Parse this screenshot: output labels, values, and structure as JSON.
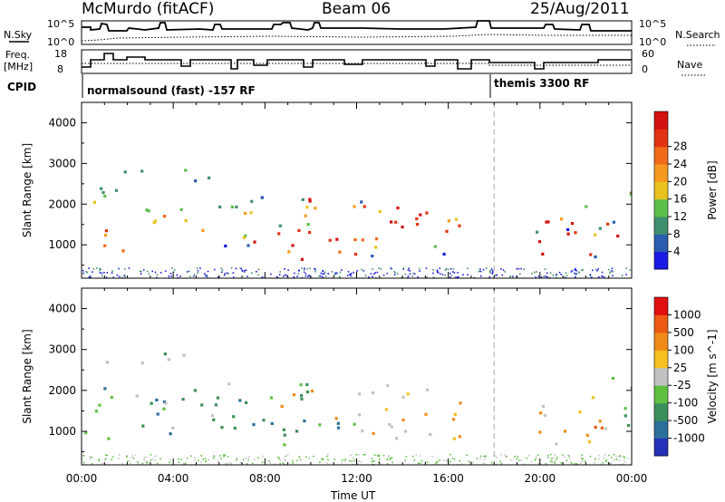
{
  "header": {
    "station": "McMurdo (fitACF)",
    "beam": "Beam 06",
    "date": "25/Aug/2011"
  },
  "status_panel": {
    "nsky_label": "N.Sky",
    "nsearch_label": "N.Search",
    "nsky_ticks": [
      "10^5",
      "10^0"
    ],
    "nsearch_ticks": [
      "10^5",
      "10^0"
    ],
    "freq_label_line1": "Freq.",
    "freq_label_line2": "[MHz]",
    "freq_ticks": [
      "18",
      "8"
    ],
    "nave_label": "Nave",
    "nave_ticks": [
      "60",
      "0"
    ],
    "cpid_label": "CPID",
    "cpid_program_1": "normalsound (fast) -157 RF",
    "cpid_program_2": "themis 3300 RF"
  },
  "chart_data": [
    {
      "type": "heatmap",
      "panel": "power",
      "title": "",
      "xlabel": "Time UT",
      "ylabel": "Slant Range [km]",
      "ylim": [
        180,
        4500
      ],
      "xlim": [
        "00:00",
        "24:00"
      ],
      "x_ticks": [
        "00:00",
        "04:00",
        "08:00",
        "12:00",
        "16:00",
        "20:00",
        "00:00"
      ],
      "y_ticks": [
        1000,
        2000,
        3000,
        4000
      ],
      "colorbar": {
        "label": "Power [dB]",
        "ticks": [
          "4",
          "8",
          "12",
          "16",
          "20",
          "24",
          "28"
        ],
        "colors": [
          "#1a1ae6",
          "#2a5db0",
          "#3f8f6e",
          "#5bbf4a",
          "#e8c21e",
          "#f59a1e",
          "#f06a1a",
          "#e23214",
          "#d41010"
        ]
      },
      "regions": [
        {
          "t0": 0.1,
          "t1": 1.4,
          "r0": 800,
          "r1": 1500,
          "core": 0.75
        },
        {
          "t0": 0.2,
          "t1": 1.8,
          "r0": 1500,
          "r1": 2500,
          "core": 0.1
        },
        {
          "t0": 1.5,
          "t1": 2.3,
          "r0": 700,
          "r1": 1200,
          "core": 0.5
        },
        {
          "t0": 1.0,
          "t1": 2.8,
          "r0": 2600,
          "r1": 2900,
          "core": 0.1
        },
        {
          "t0": 2.6,
          "t1": 4.6,
          "r0": 1200,
          "r1": 2200,
          "core": 0.08
        },
        {
          "t0": 3.3,
          "t1": 5.6,
          "r0": 2600,
          "r1": 3000,
          "core": 0.05
        },
        {
          "t0": 5.2,
          "t1": 8.5,
          "r0": 1000,
          "r1": 2200,
          "core": 0.2
        },
        {
          "t0": 6.8,
          "t1": 7.5,
          "r0": 800,
          "r1": 1400,
          "core": 0.4
        },
        {
          "t0": 8.0,
          "t1": 12.0,
          "r0": 600,
          "r1": 1400,
          "core": 0.75
        },
        {
          "t0": 8.5,
          "t1": 12.0,
          "r0": 1400,
          "r1": 2200,
          "core": 0.2
        },
        {
          "t0": 12.0,
          "t1": 15.3,
          "r0": 700,
          "r1": 2100,
          "core": 0.6
        },
        {
          "t0": 15.3,
          "t1": 16.7,
          "r0": 800,
          "r1": 2000,
          "core": 0.35
        },
        {
          "t0": 19.6,
          "t1": 23.4,
          "r0": 700,
          "r1": 1400,
          "core": 0.8
        },
        {
          "t0": 20.0,
          "t1": 22.8,
          "r0": 1400,
          "r1": 2100,
          "core": 0.3
        },
        {
          "t0": 22.8,
          "t1": 24.0,
          "r0": 1500,
          "r1": 2500,
          "core": 0.35
        }
      ]
    },
    {
      "type": "heatmap",
      "panel": "velocity",
      "title": "",
      "xlabel": "Time UT",
      "ylabel": "Slant Range [km]",
      "ylim": [
        180,
        4500
      ],
      "xlim": [
        "00:00",
        "24:00"
      ],
      "x_ticks": [
        "00:00",
        "04:00",
        "08:00",
        "12:00",
        "16:00",
        "20:00",
        "00:00"
      ],
      "y_ticks": [
        1000,
        2000,
        3000,
        4000
      ],
      "colorbar": {
        "label": "Velocity [m s^-1]",
        "ticks": [
          "1000",
          "500",
          "100",
          "25",
          "-25",
          "-100",
          "-500",
          "-1000"
        ],
        "colors": [
          "#2530b8",
          "#2b6f9a",
          "#3c8f5a",
          "#5fc040",
          "#c2c2c2",
          "#f5c020",
          "#f08a18",
          "#ee5a16",
          "#e01010"
        ]
      },
      "regions": [
        {
          "t0": 0.1,
          "t1": 1.4,
          "r0": 800,
          "r1": 2300,
          "mix": [
            "#3c8f5a",
            "#2b6f9a",
            "#5fc040"
          ]
        },
        {
          "t0": 1.4,
          "t1": 4.2,
          "r0": 900,
          "r1": 2000,
          "mix": [
            "#3c8f5a",
            "#2b6f9a",
            "#5fc040",
            "#c2c2c2"
          ]
        },
        {
          "t0": 1.0,
          "t1": 4.6,
          "r0": 2600,
          "r1": 3000,
          "mix": [
            "#c2c2c2",
            "#3c8f5a"
          ]
        },
        {
          "t0": 4.2,
          "t1": 6.6,
          "r0": 1000,
          "r1": 2200,
          "mix": [
            "#f08a18",
            "#3c8f5a",
            "#c2c2c2"
          ]
        },
        {
          "t0": 6.6,
          "t1": 8.4,
          "r0": 900,
          "r1": 2100,
          "mix": [
            "#3c8f5a",
            "#2b6f9a",
            "#5fc040"
          ]
        },
        {
          "t0": 8.4,
          "t1": 12.0,
          "r0": 700,
          "r1": 2200,
          "mix": [
            "#3c8f5a",
            "#f08a18",
            "#2b6f9a",
            "#5fc040"
          ]
        },
        {
          "t0": 12.0,
          "t1": 16.7,
          "r0": 800,
          "r1": 2200,
          "mix": [
            "#f08a18",
            "#f5c020",
            "#c2c2c2"
          ]
        },
        {
          "t0": 19.6,
          "t1": 22.8,
          "r0": 700,
          "r1": 1900,
          "mix": [
            "#f08a18",
            "#ee5a16",
            "#f5c020",
            "#c2c2c2"
          ]
        },
        {
          "t0": 22.8,
          "t1": 24.0,
          "r0": 900,
          "r1": 2400,
          "mix": [
            "#3c8f5a",
            "#5fc040",
            "#c2c2c2",
            "#2b6f9a"
          ]
        }
      ]
    }
  ]
}
